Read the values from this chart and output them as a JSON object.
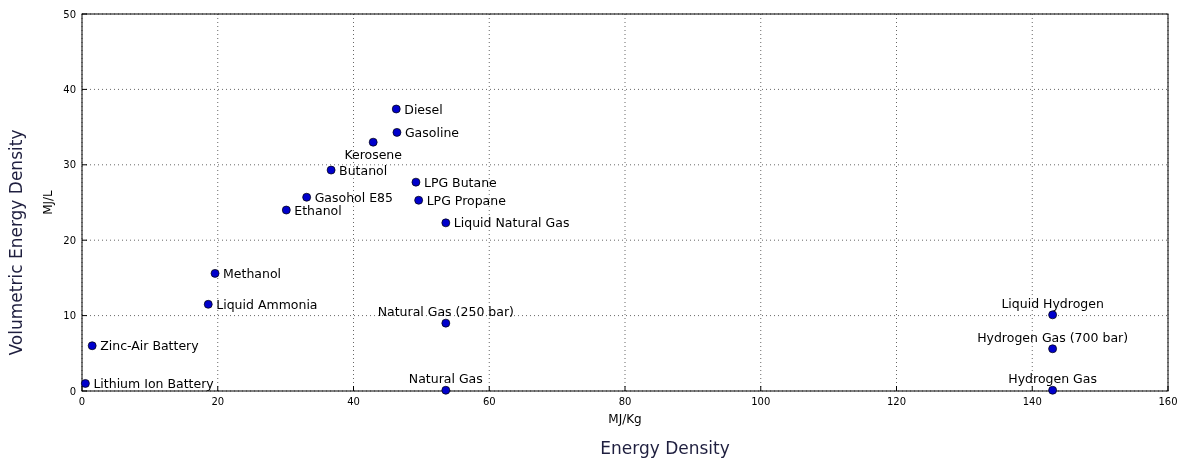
{
  "chart_data": {
    "type": "scatter",
    "xlabel": "MJ/Kg",
    "ylabel": "MJ/L",
    "x": [
      46.3,
      46.4,
      42.9,
      36.7,
      49.2,
      33.1,
      49.6,
      30.1,
      53.6,
      19.6,
      18.6,
      53.6,
      1.5,
      0.5,
      53.6,
      143.0,
      143.0,
      143.0
    ],
    "series": [
      {
        "color": "#0000cc",
        "values": [
          37.4,
          34.3,
          33.0,
          29.3,
          27.7,
          25.7,
          25.3,
          24.0,
          22.3,
          15.6,
          11.5,
          9.0,
          6.0,
          1.0,
          0.1,
          10.1,
          5.6,
          0.1
        ]
      }
    ],
    "xlim": [
      0,
      160
    ],
    "xticks": [
      0,
      20,
      40,
      60,
      80,
      100,
      120,
      140,
      160
    ],
    "ylim": [
      0,
      50
    ],
    "yticks": [
      0,
      10,
      20,
      30,
      40,
      50
    ],
    "grid": true,
    "marker": "circle",
    "annotations": [
      {
        "text": "Diesel",
        "x": 46.3,
        "y": 37.4
      },
      {
        "text": "Gasoline",
        "x": 46.4,
        "y": 34.3
      },
      {
        "text": "Kerosene",
        "x": 42.9,
        "y": 33.0
      },
      {
        "text": "Butanol",
        "x": 36.7,
        "y": 29.3
      },
      {
        "text": "LPG Butane",
        "x": 49.2,
        "y": 27.7
      },
      {
        "text": "Gasohol E85",
        "x": 33.1,
        "y": 25.7
      },
      {
        "text": "LPG Propane",
        "x": 49.6,
        "y": 25.3
      },
      {
        "text": "Ethanol",
        "x": 30.1,
        "y": 24.0
      },
      {
        "text": "Liquid Natural Gas",
        "x": 53.6,
        "y": 22.3
      },
      {
        "text": "Methanol",
        "x": 19.6,
        "y": 15.6
      },
      {
        "text": "Liquid Ammonia",
        "x": 18.6,
        "y": 11.5
      },
      {
        "text": "Natural Gas (250 bar)",
        "x": 53.6,
        "y": 9.0
      },
      {
        "text": "Zinc-Air Battery",
        "x": 1.5,
        "y": 6.0
      },
      {
        "text": "Lithium Ion Battery",
        "x": 0.5,
        "y": 1.0
      },
      {
        "text": "Natural Gas",
        "x": 53.6,
        "y": 0.1
      },
      {
        "text": "Liquid Hydrogen",
        "x": 143.0,
        "y": 10.1
      },
      {
        "text": "Hydrogen Gas (700 bar)",
        "x": 143.0,
        "y": 5.6
      },
      {
        "text": "Hydrogen Gas",
        "x": 143.0,
        "y": 0.1
      },
      "Energy Density",
      "Volumetric Energy Density"
    ]
  }
}
